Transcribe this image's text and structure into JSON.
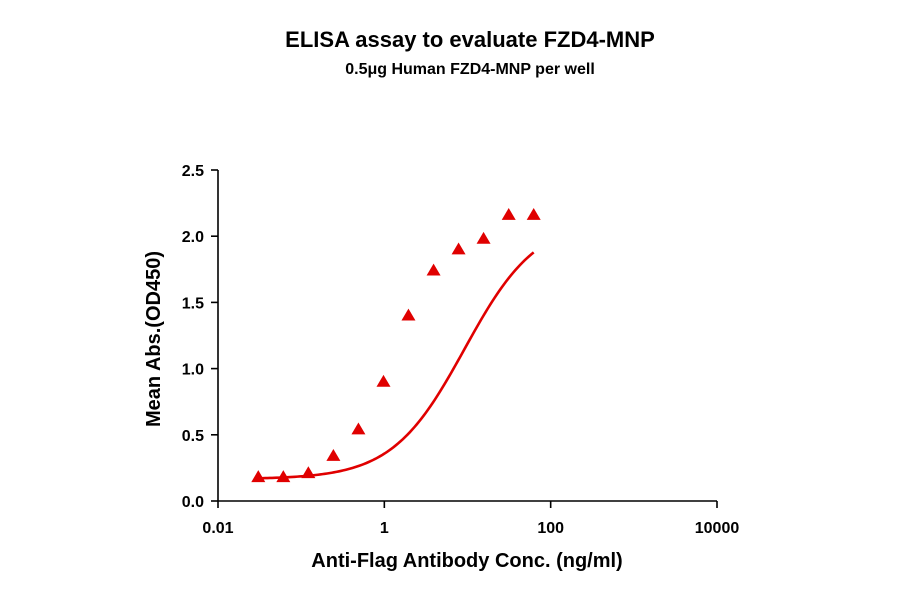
{
  "chart_data": {
    "type": "scatter",
    "title": "ELISA assay to evaluate FZD4-MNP",
    "subtitle": "0.5μg Human FZD4-MNP per well",
    "xlabel": "Anti-Flag Antibody Conc. (ng/ml)",
    "ylabel": "Mean Abs.(OD450)",
    "x_scale": "log",
    "xlim": [
      0.01,
      10000
    ],
    "ylim": [
      0,
      2.5
    ],
    "x_ticks": [
      {
        "value": 0.01,
        "label": "0.01"
      },
      {
        "value": 1,
        "label": "1"
      },
      {
        "value": 100,
        "label": "100"
      },
      {
        "value": 10000,
        "label": "10000"
      }
    ],
    "y_ticks": [
      {
        "value": 0,
        "label": "0.0"
      },
      {
        "value": 0.5,
        "label": "0.5"
      },
      {
        "value": 1.0,
        "label": "1.0"
      },
      {
        "value": 1.5,
        "label": "1.5"
      },
      {
        "value": 2.0,
        "label": "2.0"
      },
      {
        "value": 2.5,
        "label": "2.5"
      }
    ],
    "grid": false,
    "legend": "none",
    "marker": "triangle",
    "color": "#e00000",
    "series": [
      {
        "x": [
          0.0305,
          0.061,
          0.122,
          0.244,
          0.488,
          0.977,
          1.95,
          3.91,
          7.81,
          15.6,
          31.3,
          62.5
        ],
        "y": [
          0.18,
          0.18,
          0.21,
          0.34,
          0.54,
          0.9,
          1.4,
          1.74,
          1.9,
          1.98,
          2.16,
          2.16
        ]
      }
    ],
    "fit": {
      "model": "4PL",
      "bottom": 0.165,
      "top": 2.13,
      "ec50": 9.2,
      "hill": 1.0
    }
  }
}
